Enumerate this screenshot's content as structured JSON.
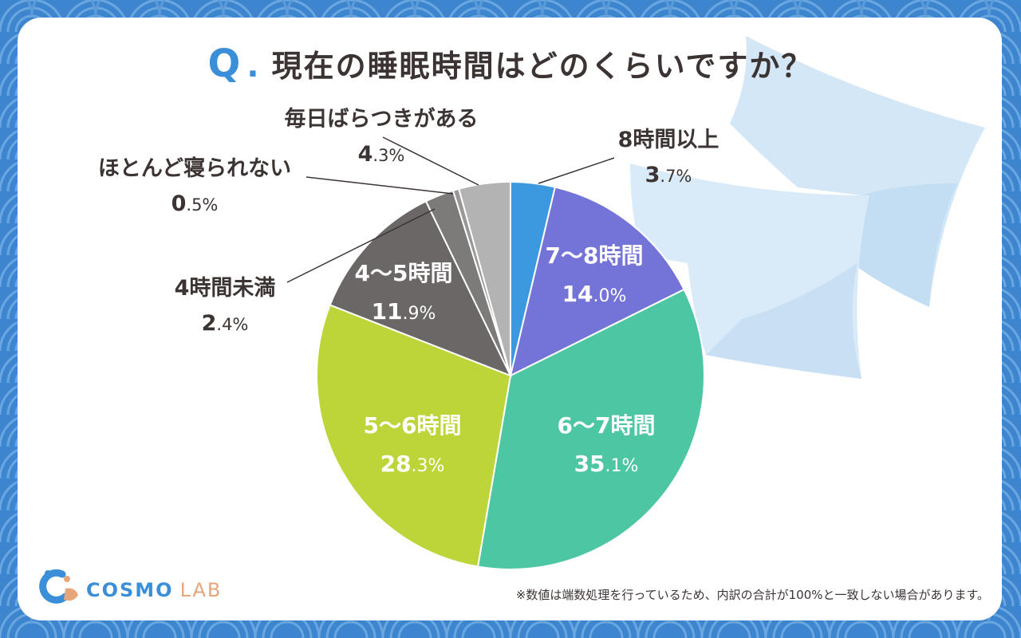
{
  "title": {
    "q_mark": "Q",
    "q_dot": ".",
    "text": "現在の睡眠時間はどのくらいですか？"
  },
  "chart_data": {
    "type": "pie",
    "start": "top",
    "direction": "clockwise",
    "slices": [
      {
        "label": "8時間以上",
        "value": 3.7,
        "display_int": "3",
        "display_dec": ".7%",
        "color": "#3c98df",
        "label_style": "outside"
      },
      {
        "label": "7〜8時間",
        "value": 14.0,
        "display_int": "14",
        "display_dec": ".0%",
        "color": "#7474d8",
        "label_style": "inside"
      },
      {
        "label": "6〜7時間",
        "value": 35.1,
        "display_int": "35",
        "display_dec": ".1%",
        "color": "#4dc6a4",
        "label_style": "inside"
      },
      {
        "label": "5〜6時間",
        "value": 28.3,
        "display_int": "28",
        "display_dec": ".3%",
        "color": "#bed53a",
        "label_style": "inside"
      },
      {
        "label": "4〜5時間",
        "value": 11.9,
        "display_int": "11",
        "display_dec": ".9%",
        "color": "#6b6766",
        "label_style": "inside"
      },
      {
        "label": "4時間未満",
        "value": 2.4,
        "display_int": "2",
        "display_dec": ".4%",
        "color": "#7d7b7a",
        "label_style": "outside"
      },
      {
        "label": "ほとんど寝られない",
        "value": 0.5,
        "display_int": "0",
        "display_dec": ".5%",
        "color": "#999797",
        "label_style": "outside"
      },
      {
        "label": "毎日ばらつきがある",
        "value": 4.3,
        "display_int": "4",
        "display_dec": ".3%",
        "color": "#b4b3b3",
        "label_style": "outside"
      }
    ]
  },
  "footnote": "※数値は端数処理を行っているため、内訳の合計が100%と一致しない場合があります。",
  "logo": {
    "cosmo": "COSMO",
    "lab": "LAB"
  },
  "colors": {
    "background": "#3d86cf",
    "accent": "#3b8fd8",
    "text": "#3c3433",
    "logo_lab": "#e7a57a"
  }
}
